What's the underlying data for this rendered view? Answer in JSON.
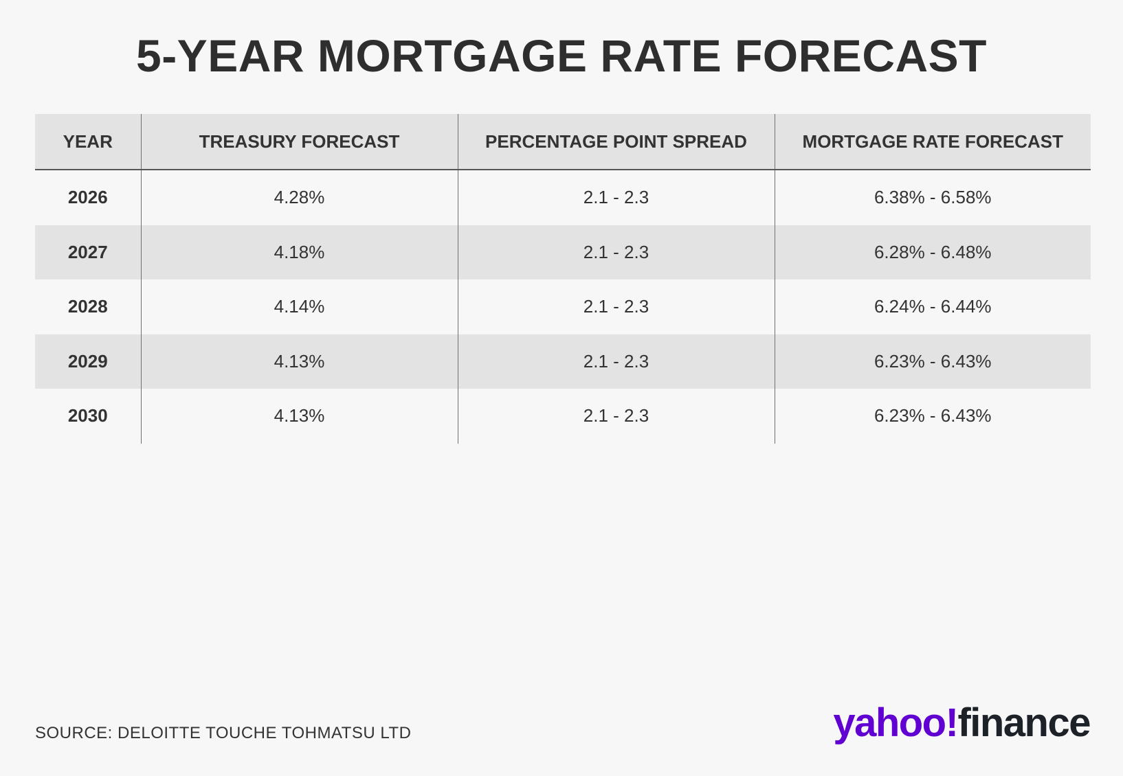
{
  "title": "5-YEAR MORTGAGE RATE FORECAST",
  "table": {
    "headers": [
      "YEAR",
      "TREASURY FORECAST",
      "PERCENTAGE POINT SPREAD",
      "MORTGAGE RATE FORECAST"
    ],
    "rows": [
      [
        "2026",
        "4.28%",
        "2.1 - 2.3",
        "6.38% - 6.58%"
      ],
      [
        "2027",
        "4.18%",
        "2.1 - 2.3",
        "6.28% - 6.48%"
      ],
      [
        "2028",
        "4.14%",
        "2.1 - 2.3",
        "6.24% - 6.44%"
      ],
      [
        "2029",
        "4.13%",
        "2.1 - 2.3",
        "6.23% - 6.43%"
      ],
      [
        "2030",
        "4.13%",
        "2.1 - 2.3",
        "6.23% - 6.43%"
      ]
    ]
  },
  "chart_data": {
    "type": "table",
    "title": "5-YEAR MORTGAGE RATE FORECAST",
    "columns": [
      "YEAR",
      "TREASURY FORECAST",
      "PERCENTAGE POINT SPREAD",
      "MORTGAGE RATE FORECAST"
    ],
    "rows": [
      {
        "year": "2026",
        "treasury_forecast": "4.28%",
        "spread": "2.1 - 2.3",
        "mortgage_rate_forecast": "6.38% - 6.58%"
      },
      {
        "year": "2027",
        "treasury_forecast": "4.18%",
        "spread": "2.1 - 2.3",
        "mortgage_rate_forecast": "6.28% - 6.48%"
      },
      {
        "year": "2028",
        "treasury_forecast": "4.14%",
        "spread": "2.1 - 2.3",
        "mortgage_rate_forecast": "6.24% - 6.44%"
      },
      {
        "year": "2029",
        "treasury_forecast": "4.13%",
        "spread": "2.1 - 2.3",
        "mortgage_rate_forecast": "6.23% - 6.43%"
      },
      {
        "year": "2030",
        "treasury_forecast": "4.13%",
        "spread": "2.1 - 2.3",
        "mortgage_rate_forecast": "6.23% - 6.43%"
      }
    ]
  },
  "source": "SOURCE: DELOITTE TOUCHE TOHMATSU LTD",
  "brand": {
    "part1": "yahoo!",
    "part2": "finance"
  },
  "colors": {
    "background": "#f7f7f8",
    "header_fill": "#e3e3e3",
    "text": "#2e2e2e",
    "brand_purple": "#6001d2",
    "brand_dark": "#1d2228"
  }
}
